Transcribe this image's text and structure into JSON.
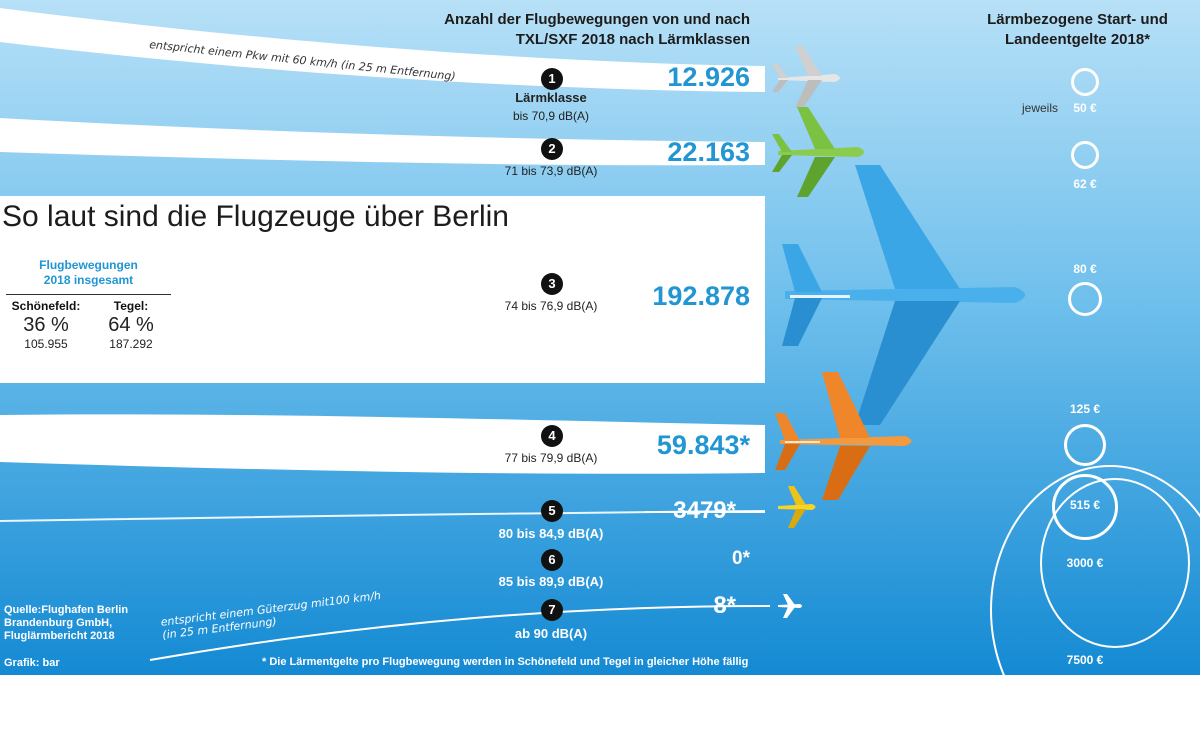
{
  "title": "So laut sind die Flugzeuge über Berlin",
  "header_left": [
    "Anzahl der Flugbewegungen von und nach",
    "TXL/SXF 2018 nach Lärmklassen"
  ],
  "header_right": [
    "Lärmbezogene Start- und",
    "Landeentgelte 2018*"
  ],
  "note_top": "entspricht einem Pkw mit 60 km/h  (in 25 m Entfernung)",
  "note_bottom": [
    "entspricht einem Güterzug mit100 km/h",
    "(in 25 m Entfernung)"
  ],
  "class_label": "Lärmklasse",
  "fee_each_label": "jeweils",
  "share": {
    "title": [
      "Flugbewegungen",
      "2018 insgesamt"
    ],
    "columns": [
      {
        "name": "Schönefeld:",
        "pct": "36 %",
        "count": "105.955"
      },
      {
        "name": "Tegel:",
        "pct": "64 %",
        "count": "187.292"
      }
    ]
  },
  "source": [
    "Quelle:Flughafen Berlin",
    "Brandenburg GmbH,",
    "Fluglärmbericht 2018"
  ],
  "credit": "Grafik: bar",
  "footnote": "* Die Lärmentgelte pro Flugbewegung werden in Schönefeld und Tegel in gleicher Höhe fällig",
  "colors": {
    "sky_light": "#7cc4ee",
    "sky_dark": "#1e8fd6",
    "number_blue": "#2196d3",
    "plane_green": "#7cc242",
    "plane_blue": "#3aa6e6",
    "plane_orange": "#f0862a",
    "plane_yellow": "#f5d327",
    "plane_grey": "#d9d9d9"
  },
  "chart_data": {
    "type": "bar",
    "categories": [
      "1",
      "2",
      "3",
      "4",
      "5",
      "6",
      "7"
    ],
    "noise_ranges": [
      "bis 70,9 dB(A)",
      "71 bis 73,9 dB(A)",
      "74 bis 76,9 dB(A)",
      "77 bis 79,9 dB(A)",
      "80 bis 84,9 dB(A)",
      "85 bis 89,9 dB(A)",
      "ab 90 dB(A)"
    ],
    "values": [
      12926,
      22163,
      192878,
      59843,
      3479,
      0,
      8
    ],
    "value_labels": [
      "12.926",
      "22.163",
      "192.878",
      "59.843*",
      "3479*",
      "0*",
      "8*"
    ],
    "fees_eur": [
      50,
      62,
      80,
      125,
      515,
      3000,
      7500
    ],
    "fee_labels": [
      "50 €",
      "62 €",
      "80 €",
      "125 €",
      "515 €",
      "3000 €",
      "7500 €"
    ]
  }
}
